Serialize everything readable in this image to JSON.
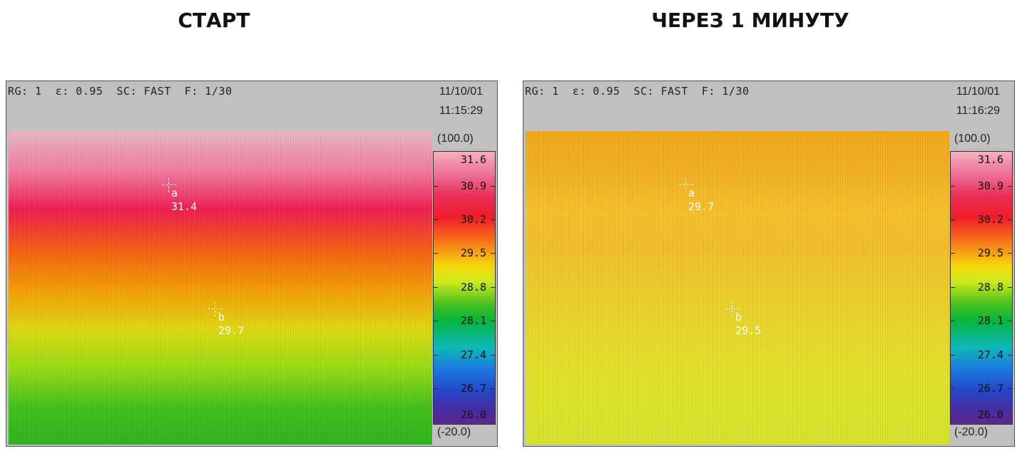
{
  "captions": {
    "left": "СТАРТ",
    "right": "ЧЕРЕЗ 1 МИНУТУ"
  },
  "panels": [
    {
      "header": "RG: 1  ε: 0.95  SC: FAST  F: 1/30",
      "date": "11/10/01",
      "time": "11:15:29",
      "range_top": "(100.0)",
      "range_bottom": "(-20.0)",
      "scale": [
        "31.6",
        "30.9",
        "30.2",
        "29.5",
        "28.8",
        "28.1",
        "27.4",
        "26.7",
        "26.0"
      ],
      "markers": [
        {
          "label": "a",
          "value": "31.4"
        },
        {
          "label": "b",
          "value": "29.7"
        }
      ],
      "palette": [
        "#e8b8c0",
        "#f07aa0",
        "#ee1e50",
        "#f46014",
        "#f49a08",
        "#e0d810",
        "#9cdc14",
        "#44c01c",
        "#2cb41c"
      ]
    },
    {
      "header": "RG: 1  ε: 0.95  SC: FAST  F: 1/30",
      "date": "11/10/01",
      "time": "11:16:29",
      "range_top": "(100.0)",
      "range_bottom": "(-20.0)",
      "scale": [
        "31.6",
        "30.9",
        "30.2",
        "29.5",
        "28.8",
        "28.1",
        "27.4",
        "26.7",
        "26.0"
      ],
      "markers": [
        {
          "label": "a",
          "value": "29.7"
        },
        {
          "label": "b",
          "value": "29.5"
        }
      ],
      "palette": [
        "#f0a81c",
        "#f2b024",
        "#f4c02a",
        "#f0c02a",
        "#eccc2a",
        "#e8d82a",
        "#e4e02a",
        "#dde42a",
        "#d8e42a"
      ]
    }
  ]
}
